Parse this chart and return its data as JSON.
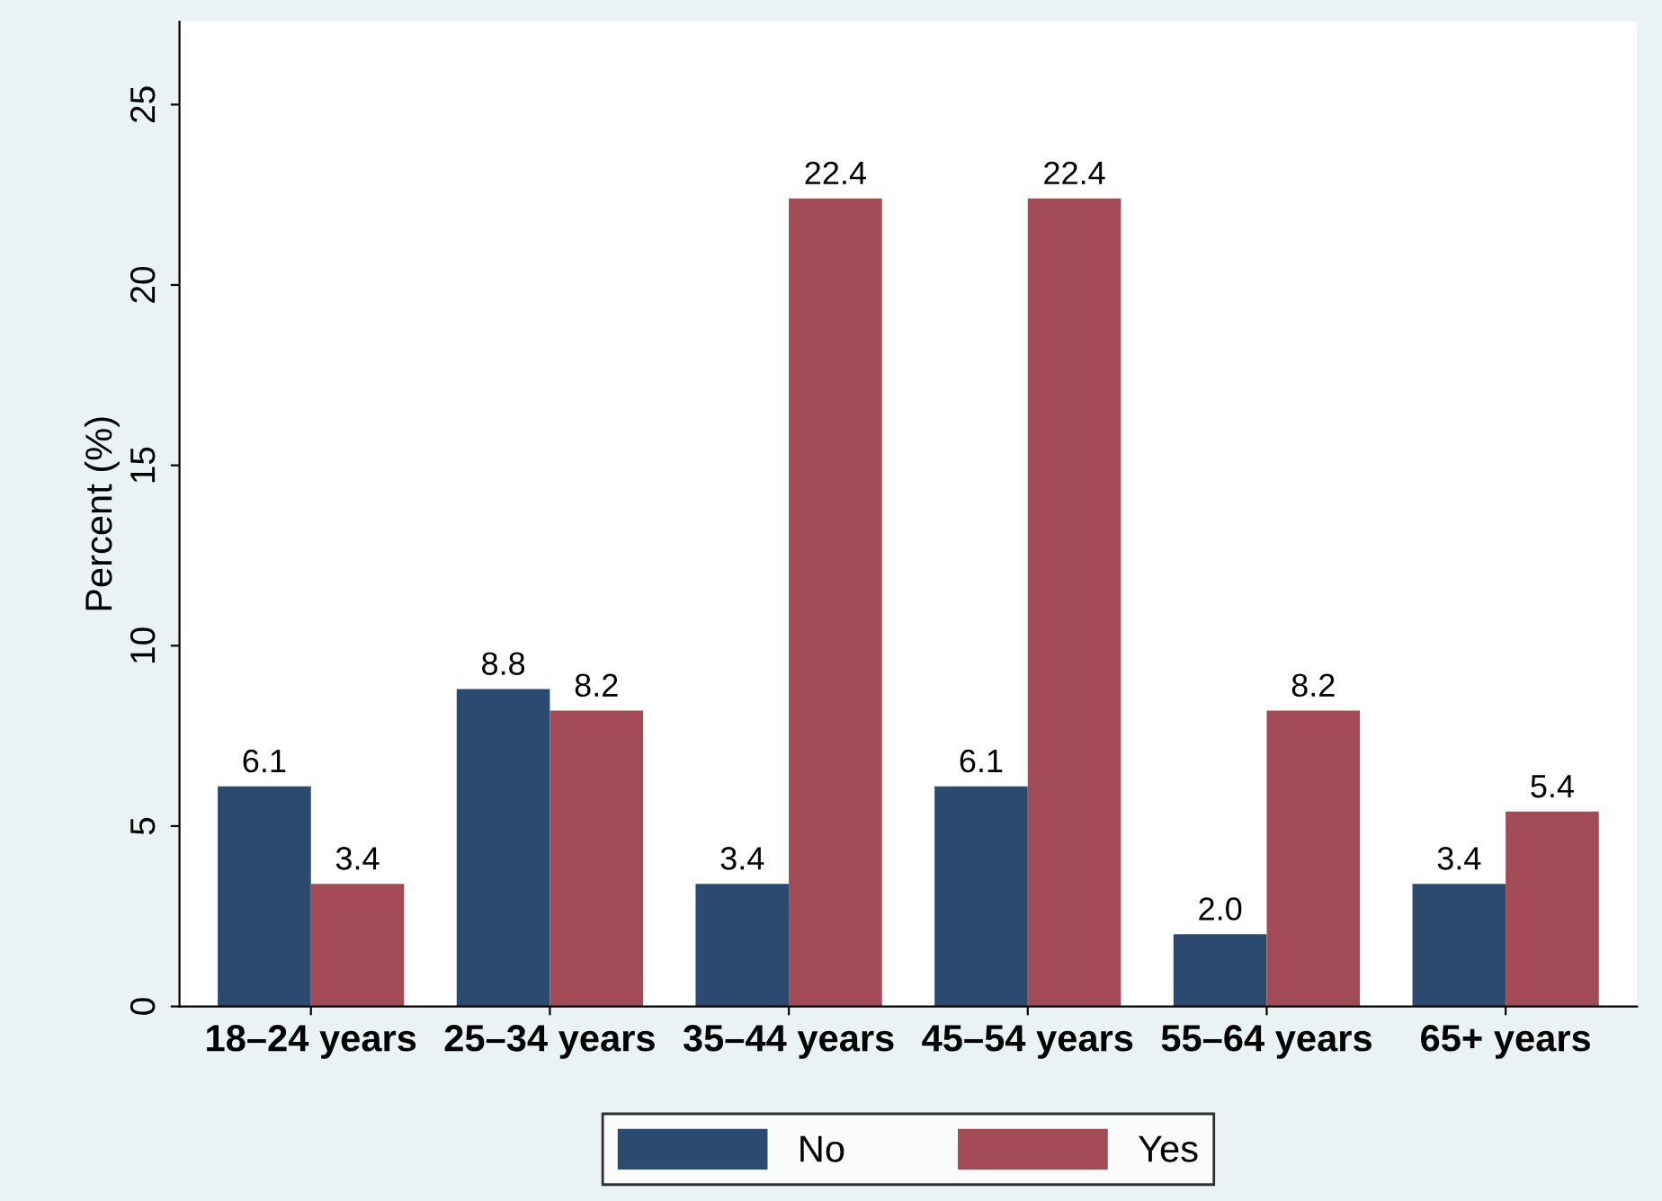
{
  "chart_data": {
    "type": "bar",
    "ylabel": "Percent (%)",
    "categories": [
      "18–24 years",
      "25–34 years",
      "35–44 years",
      "45–54 years",
      "55–64 years",
      "65+ years"
    ],
    "series": [
      {
        "name": "No",
        "color": "#2b4a6f",
        "values": [
          6.1,
          8.8,
          3.4,
          6.1,
          2.0,
          3.4
        ],
        "value_labels": [
          "6.1",
          "8.8",
          "3.4",
          "6.1",
          "2.0",
          "3.4"
        ]
      },
      {
        "name": "Yes",
        "color": "#a24a55",
        "values": [
          3.4,
          8.2,
          22.4,
          22.4,
          8.2,
          5.4
        ],
        "value_labels": [
          "3.4",
          "8.2",
          "22.4",
          "22.4",
          "8.2",
          "5.4"
        ]
      }
    ],
    "ylim": [
      0,
      27.3
    ],
    "yticks": [
      0,
      5,
      10,
      15,
      20,
      25
    ],
    "grid": false,
    "legend": "bottom"
  }
}
